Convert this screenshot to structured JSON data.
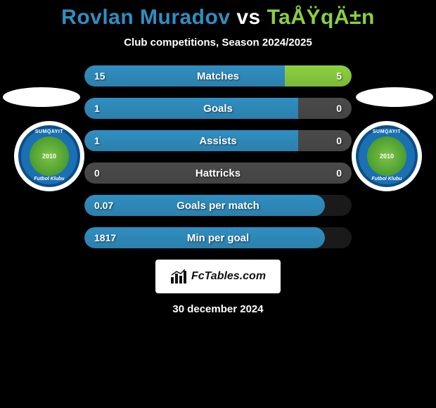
{
  "title": {
    "player1": "Rovlan Muradov",
    "vs": " vs ",
    "player2": "TaÅŸqÄ±n",
    "color_p1": "#2f8fc2",
    "color_vs": "#ffffff",
    "color_p2": "#8bd13f"
  },
  "subtitle": "Club competitions, Season 2024/2025",
  "colors": {
    "left": "#2f8fc2",
    "right": "#8bd13f",
    "neutral": "#4a4a4a",
    "track": "#1a1a1a"
  },
  "badges": {
    "top": "SUMQAYIT",
    "year": "2010",
    "bottom": "Futbol Klubu"
  },
  "stats": [
    {
      "label": "Matches",
      "left_val": "15",
      "right_val": "5",
      "left_pct": 75,
      "right_pct": 25,
      "two_sided": true
    },
    {
      "label": "Goals",
      "left_val": "1",
      "right_val": "0",
      "left_pct": 80,
      "right_pct": 20,
      "two_sided": true,
      "right_neutral": true
    },
    {
      "label": "Assists",
      "left_val": "1",
      "right_val": "0",
      "left_pct": 80,
      "right_pct": 20,
      "two_sided": true,
      "right_neutral": true
    },
    {
      "label": "Hattricks",
      "left_val": "0",
      "right_val": "0",
      "left_pct": 50,
      "right_pct": 50,
      "two_sided": true,
      "both_neutral": true
    },
    {
      "label": "Goals per match",
      "left_val": "0.07",
      "right_val": "",
      "left_pct": 90,
      "right_pct": 0,
      "two_sided": false
    },
    {
      "label": "Min per goal",
      "left_val": "1817",
      "right_val": "",
      "left_pct": 90,
      "right_pct": 0,
      "two_sided": false
    }
  ],
  "logo": "FcTables.com",
  "date": "30 december 2024"
}
